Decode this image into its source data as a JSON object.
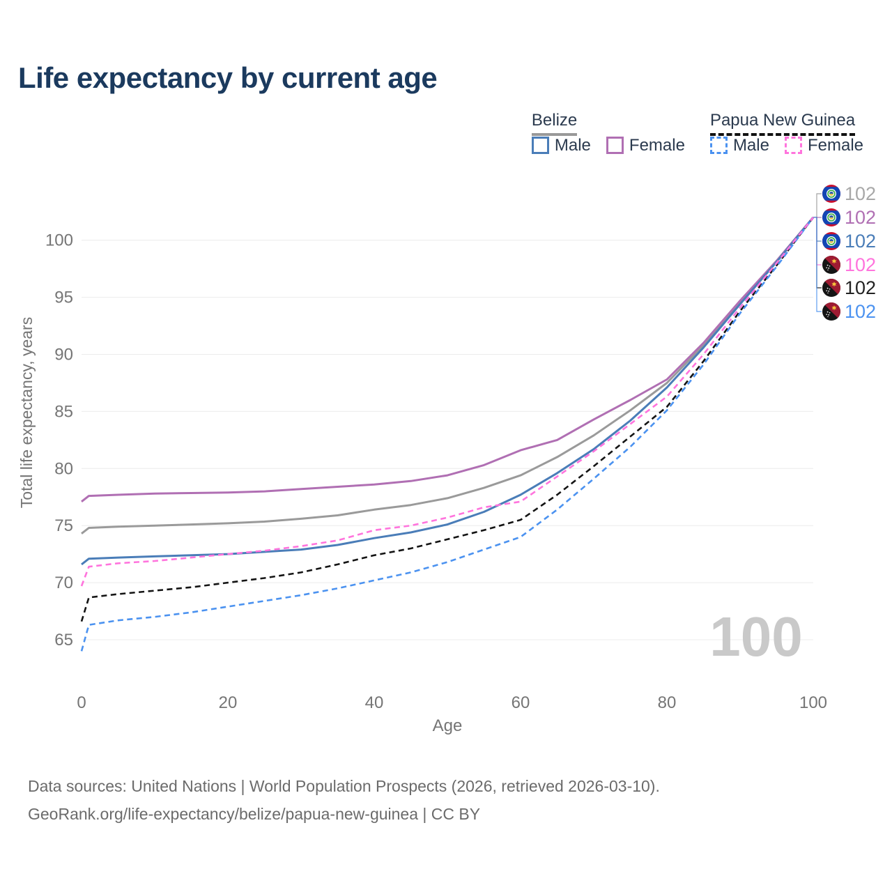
{
  "title": "Life expectancy by current age",
  "watermark": "100",
  "legend": {
    "groups": [
      {
        "label": "Belize",
        "line_style": "solid",
        "underline_color": "#999999",
        "items": [
          {
            "label": "Male",
            "color": "#4a7db8",
            "dashed": false
          },
          {
            "label": "Female",
            "color": "#b06fb3",
            "dashed": false
          }
        ]
      },
      {
        "label": "Papua New Guinea",
        "line_style": "dashed",
        "underline_color": "#111111",
        "items": [
          {
            "label": "Male",
            "color": "#4b92f0",
            "dashed": true
          },
          {
            "label": "Female",
            "color": "#ff74dd",
            "dashed": true
          }
        ]
      }
    ]
  },
  "chart_data": {
    "type": "line",
    "title": "Life expectancy by current age",
    "xlabel": "Age",
    "ylabel": "Total life expectancy, years",
    "xticks": [
      0,
      20,
      40,
      60,
      80,
      100
    ],
    "yticks": [
      65,
      70,
      75,
      80,
      85,
      90,
      95,
      100
    ],
    "xlim": [
      0,
      100
    ],
    "ylim": [
      63.5,
      103
    ],
    "grid": "horizontal",
    "grid_color": "#ececec",
    "axis_text_color": "#757575",
    "legend_position": "top-right",
    "x": [
      0,
      1,
      5,
      10,
      15,
      20,
      25,
      30,
      35,
      40,
      45,
      50,
      55,
      60,
      65,
      70,
      75,
      80,
      85,
      90,
      95,
      100
    ],
    "series": [
      {
        "name": "Belize",
        "country": "Belize",
        "sex": "both",
        "color": "#9a9a9a",
        "label_color": "#a8a8a8",
        "dashed": false,
        "icon": "belize-flag",
        "end_label": "102",
        "values": [
          74.3,
          74.8,
          74.9,
          75.0,
          75.1,
          75.2,
          75.35,
          75.6,
          75.9,
          76.4,
          76.8,
          77.4,
          78.3,
          79.4,
          81.0,
          82.9,
          85.1,
          87.5,
          90.8,
          94.6,
          98.2,
          102
        ]
      },
      {
        "name": "Belize Female",
        "country": "Belize",
        "sex": "female",
        "color": "#b06fb3",
        "label_color": "#b06fb3",
        "dashed": false,
        "icon": "belize-flag",
        "end_label": "102",
        "values": [
          77.1,
          77.6,
          77.7,
          77.8,
          77.85,
          77.9,
          78.0,
          78.2,
          78.4,
          78.6,
          78.9,
          79.4,
          80.3,
          81.6,
          82.5,
          84.3,
          86.0,
          87.8,
          91.0,
          94.7,
          98.2,
          102
        ]
      },
      {
        "name": "Belize Male",
        "country": "Belize",
        "sex": "male",
        "color": "#4a7db8",
        "label_color": "#4a7db8",
        "dashed": false,
        "icon": "belize-flag",
        "end_label": "102",
        "values": [
          71.6,
          72.1,
          72.2,
          72.3,
          72.4,
          72.5,
          72.7,
          72.9,
          73.3,
          73.9,
          74.4,
          75.1,
          76.2,
          77.7,
          79.6,
          81.7,
          84.2,
          87.1,
          90.6,
          94.4,
          98.1,
          102
        ]
      },
      {
        "name": "Papua New Guinea Female",
        "country": "Papua New Guinea",
        "sex": "female",
        "color": "#ff74dd",
        "label_color": "#ff74dd",
        "dashed": true,
        "icon": "papua-new-guinea-flag",
        "end_label": "102",
        "values": [
          69.7,
          71.4,
          71.7,
          71.9,
          72.2,
          72.5,
          72.8,
          73.2,
          73.7,
          74.6,
          75.0,
          75.7,
          76.6,
          77.1,
          79.3,
          81.5,
          83.9,
          86.3,
          90.0,
          94.1,
          98.0,
          102
        ]
      },
      {
        "name": "Papua New Guinea",
        "country": "Papua New Guinea",
        "sex": "both",
        "color": "#141414",
        "label_color": "#222222",
        "dashed": true,
        "icon": "papua-new-guinea-flag",
        "end_label": "102",
        "values": [
          66.6,
          68.7,
          69.0,
          69.3,
          69.6,
          70.0,
          70.4,
          70.9,
          71.6,
          72.4,
          73.0,
          73.8,
          74.6,
          75.5,
          77.7,
          80.2,
          82.8,
          85.4,
          89.4,
          93.8,
          97.8,
          102
        ]
      },
      {
        "name": "Papua New Guinea Male",
        "country": "Papua New Guinea",
        "sex": "male",
        "color": "#4b92f0",
        "label_color": "#4b92f0",
        "dashed": true,
        "icon": "papua-new-guinea-flag",
        "end_label": "102",
        "values": [
          64.0,
          66.3,
          66.7,
          67.0,
          67.4,
          67.9,
          68.4,
          68.9,
          69.5,
          70.2,
          70.9,
          71.8,
          72.9,
          74.0,
          76.4,
          79.1,
          81.9,
          85.1,
          89.1,
          93.6,
          97.7,
          102
        ]
      }
    ]
  },
  "footer": {
    "line1": "Data sources: United Nations | World Population Prospects (2026, retrieved 2026-03-10).",
    "line2": "GeoRank.org/life-expectancy/belize/papua-new-guinea | CC BY"
  }
}
